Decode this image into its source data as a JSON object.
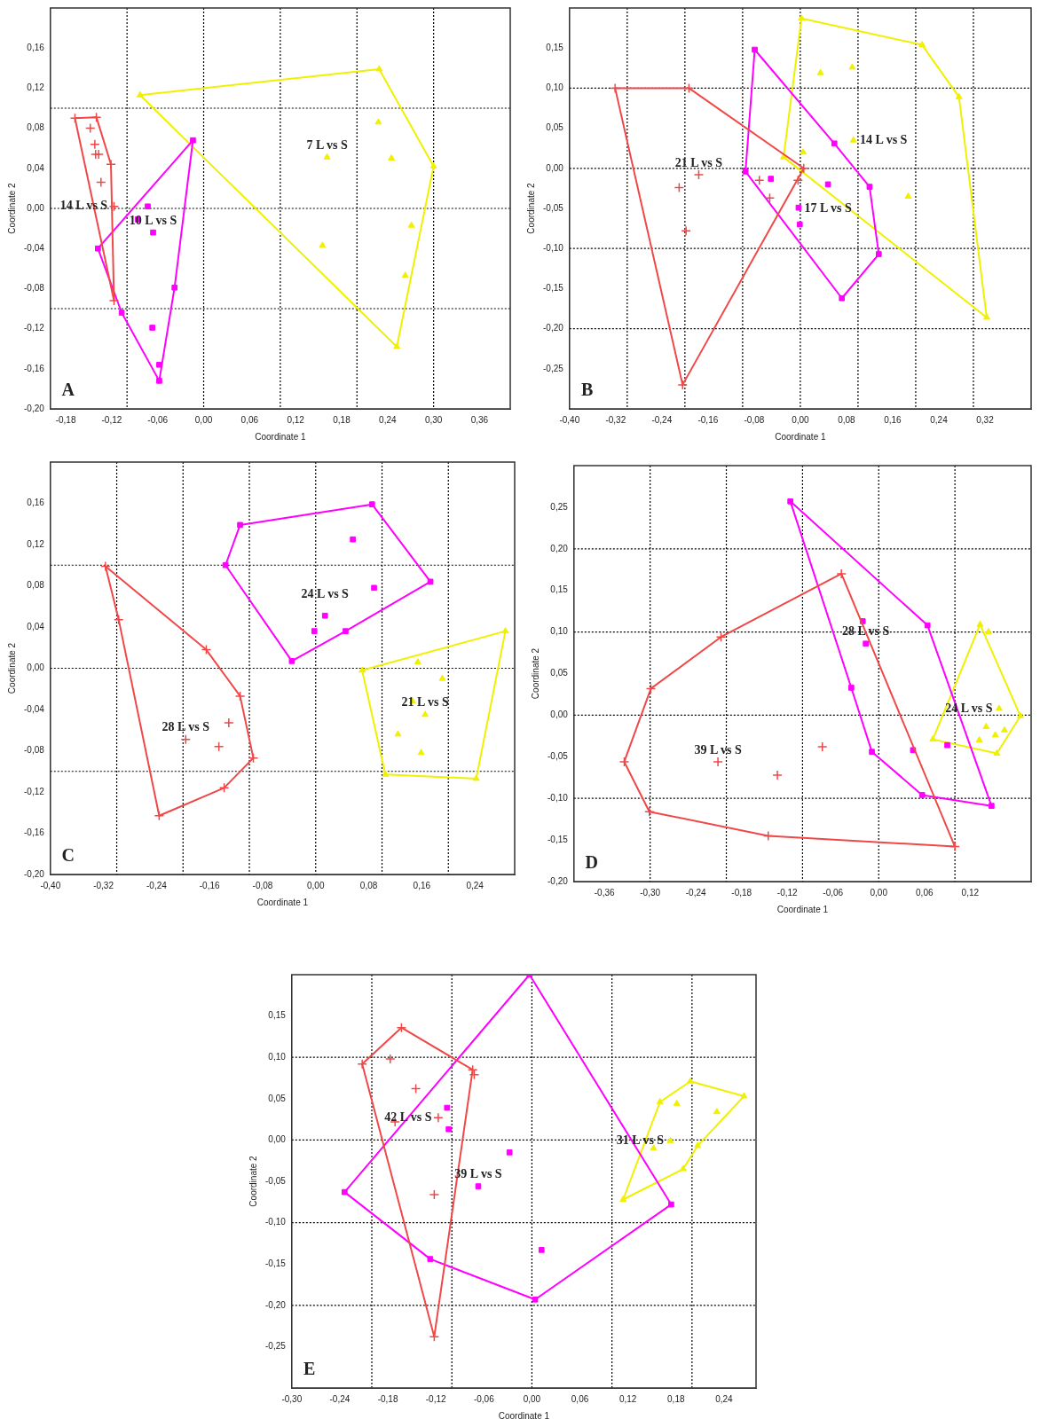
{
  "chart_data": [
    {
      "type": "scatter",
      "xlabel": "Coordinate 1",
      "ylabel": "Coordinate 2",
      "xlim": [
        -0.2,
        0.4
      ],
      "ylim": [
        -0.2,
        0.2
      ],
      "xticks": [
        {
          "value": -0.18,
          "label": "-0,18"
        },
        {
          "value": -0.12,
          "label": "-0,12"
        },
        {
          "value": -0.06,
          "label": "-0,06"
        },
        {
          "value": 0,
          "label": "0,00"
        },
        {
          "value": 0.06,
          "label": "0,06"
        },
        {
          "value": 0.12,
          "label": "0,12"
        },
        {
          "value": 0.18,
          "label": "0,18"
        },
        {
          "value": 0.24,
          "label": "0,24"
        },
        {
          "value": 0.3,
          "label": "0,30"
        },
        {
          "value": 0.36,
          "label": "0,36"
        }
      ],
      "yticks": [
        {
          "value": -0.2,
          "label": "-0,20"
        },
        {
          "value": -0.16,
          "label": "-0,16"
        },
        {
          "value": -0.12,
          "label": "-0,12"
        },
        {
          "value": -0.08,
          "label": "-0,08"
        },
        {
          "value": -0.04,
          "label": "-0,04"
        },
        {
          "value": 0,
          "label": "0,00"
        },
        {
          "value": 0.04,
          "label": "0,04"
        },
        {
          "value": 0.08,
          "label": "0,08"
        },
        {
          "value": 0.12,
          "label": "0,12"
        },
        {
          "value": 0.16,
          "label": "0,16"
        }
      ],
      "series": [
        {
          "type": "line",
          "marker": "none",
          "color": "#f04848",
          "x": [
            -0.168,
            -0.14,
            -0.121,
            -0.117
          ],
          "values": [
            0.09,
            0.091,
            0.044,
            -0.092
          ]
        },
        {
          "type": "line",
          "marker": "none",
          "color": "#f04848",
          "x": [
            -0.168,
            -0.117
          ],
          "values": [
            0.09,
            -0.092
          ]
        },
        {
          "type": "scatter",
          "name": "14 L vs S",
          "marker": "cross",
          "color": "#f04848",
          "x": [
            -0.168,
            -0.14,
            -0.121,
            -0.117,
            -0.148,
            -0.142,
            -0.141,
            -0.137,
            -0.134,
            -0.117
          ],
          "values": [
            0.09,
            0.091,
            0.044,
            -0.092,
            0.08,
            0.064,
            0.054,
            0.054,
            0.026,
            0.002
          ]
        },
        {
          "type": "line",
          "marker": "none",
          "color": "#ff00ff",
          "x": [
            -0.138,
            -0.014
          ],
          "values": [
            -0.04,
            0.068
          ]
        },
        {
          "type": "line",
          "marker": "none",
          "color": "#ff00ff",
          "x": [
            -0.138,
            -0.107,
            -0.058,
            -0.038,
            -0.014
          ],
          "values": [
            -0.04,
            -0.104,
            -0.172,
            -0.079,
            0.068
          ]
        },
        {
          "type": "scatter",
          "name": "10 L vs S",
          "marker": "square",
          "color": "#ff00ff",
          "x": [
            -0.014,
            -0.138,
            -0.107,
            -0.058,
            -0.058,
            -0.038,
            -0.073,
            -0.086,
            -0.066,
            -0.067
          ],
          "values": [
            0.068,
            -0.04,
            -0.104,
            -0.172,
            -0.156,
            -0.079,
            0.002,
            -0.011,
            -0.024,
            -0.119
          ]
        },
        {
          "type": "line",
          "marker": "none",
          "color": "#f0f000",
          "x": [
            -0.083,
            0.229,
            0.3
          ],
          "values": [
            0.113,
            0.139,
            0.042
          ]
        },
        {
          "type": "line",
          "marker": "none",
          "color": "#f0f000",
          "x": [
            -0.083,
            0.252,
            0.3
          ],
          "values": [
            0.113,
            -0.138,
            0.042
          ]
        },
        {
          "type": "scatter",
          "name": "7 L vs S",
          "marker": "triangle",
          "color": "#f0f000",
          "x": [
            -0.083,
            0.229,
            0.3,
            0.252,
            0.228,
            0.161,
            0.245,
            0.155,
            0.271,
            0.263
          ],
          "values": [
            0.113,
            0.139,
            0.042,
            -0.138,
            0.086,
            0.051,
            0.05,
            -0.037,
            -0.017,
            -0.067
          ]
        }
      ],
      "ref_lines": [
        {
          "axis": "x",
          "value": -0.1,
          "line_style": "dotted",
          "color": "#000000"
        },
        {
          "axis": "x",
          "value": 0,
          "line_style": "dotted",
          "color": "#000000"
        },
        {
          "axis": "x",
          "value": 0.1,
          "line_style": "dotted",
          "color": "#000000"
        },
        {
          "axis": "x",
          "value": 0.2,
          "line_style": "dotted",
          "color": "#000000"
        },
        {
          "axis": "x",
          "value": 0.3,
          "line_style": "dotted",
          "color": "#000000"
        },
        {
          "axis": "y",
          "value": 0.1,
          "line_style": "dotted",
          "color": "#000000"
        },
        {
          "axis": "y",
          "value": 0,
          "line_style": "dotted",
          "color": "#000000"
        },
        {
          "axis": "y",
          "value": -0.1,
          "line_style": "dotted",
          "color": "#000000"
        }
      ],
      "annotations": [
        "A"
      ]
    },
    {
      "type": "scatter",
      "xlabel": "Coordinate 1",
      "ylabel": "Coordinate 2",
      "xlim": [
        -0.4,
        0.4
      ],
      "ylim": [
        -0.3,
        0.2
      ],
      "xticks": [
        {
          "value": -0.4,
          "label": "-0,40"
        },
        {
          "value": -0.32,
          "label": "-0,32"
        },
        {
          "value": -0.24,
          "label": "-0,24"
        },
        {
          "value": -0.16,
          "label": "-0,16"
        },
        {
          "value": -0.08,
          "label": "-0,08"
        },
        {
          "value": 0,
          "label": "0,00"
        },
        {
          "value": 0.08,
          "label": "0,08"
        },
        {
          "value": 0.16,
          "label": "0,16"
        },
        {
          "value": 0.24,
          "label": "0,24"
        },
        {
          "value": 0.32,
          "label": "0,32"
        }
      ],
      "yticks": [
        {
          "value": -0.25,
          "label": "-0,25"
        },
        {
          "value": -0.2,
          "label": "-0,20"
        },
        {
          "value": -0.15,
          "label": "-0,15"
        },
        {
          "value": -0.1,
          "label": "-0,10"
        },
        {
          "value": -0.05,
          "label": "-0,05"
        },
        {
          "value": 0,
          "label": "0,00"
        },
        {
          "value": 0.05,
          "label": "0,05"
        },
        {
          "value": 0.1,
          "label": "0,10"
        },
        {
          "value": 0.15,
          "label": "0,15"
        }
      ],
      "series": [
        {
          "type": "line",
          "marker": "none",
          "color": "#f04848",
          "x": [
            -0.321,
            -0.193,
            0.006
          ],
          "values": [
            0.1,
            0.1,
            0
          ]
        },
        {
          "type": "line",
          "marker": "none",
          "color": "#f04848",
          "x": [
            -0.321,
            -0.204,
            0.006
          ],
          "values": [
            0.1,
            -0.27,
            0
          ]
        },
        {
          "type": "scatter",
          "name": "21 L vs S",
          "marker": "cross",
          "color": "#f04848",
          "x": [
            -0.321,
            -0.193,
            0.006,
            -0.204,
            -0.176,
            -0.21,
            -0.198,
            -0.071,
            -0.053,
            -0.004
          ],
          "values": [
            0.1,
            0.1,
            0,
            -0.27,
            -0.008,
            -0.024,
            -0.078,
            -0.015,
            -0.037,
            -0.015
          ]
        },
        {
          "type": "line",
          "marker": "none",
          "color": "#ff00ff",
          "x": [
            -0.095,
            -0.079,
            0.059,
            0.12,
            0.136
          ],
          "values": [
            -0.004,
            0.148,
            0.031,
            -0.023,
            -0.107
          ]
        },
        {
          "type": "line",
          "marker": "none",
          "color": "#ff00ff",
          "x": [
            -0.095,
            0.072,
            0.136
          ],
          "values": [
            -0.004,
            -0.162,
            -0.107
          ]
        },
        {
          "type": "scatter",
          "name": "17 L vs S",
          "marker": "square",
          "color": "#ff00ff",
          "x": [
            -0.079,
            0.059,
            0.12,
            0.136,
            0.072,
            -0.095,
            -0.051,
            0.048,
            -0.003,
            -0.001
          ],
          "values": [
            0.148,
            0.031,
            -0.023,
            -0.107,
            -0.162,
            -0.004,
            -0.013,
            -0.02,
            -0.049,
            -0.07
          ]
        },
        {
          "type": "line",
          "marker": "none",
          "color": "#f0f000",
          "x": [
            -0.029,
            0.002,
            0.211,
            0.275,
            0.323
          ],
          "values": [
            0.014,
            0.187,
            0.154,
            0.089,
            -0.186
          ]
        },
        {
          "type": "line",
          "marker": "none",
          "color": "#f0f000",
          "x": [
            -0.029,
            0.323
          ],
          "values": [
            0.014,
            -0.186
          ]
        },
        {
          "type": "scatter",
          "name": "14 L vs S",
          "marker": "triangle",
          "color": "#f0f000",
          "x": [
            0.002,
            0.211,
            0.275,
            0.323,
            -0.029,
            0.035,
            0.09,
            0.092,
            0.005,
            0.187
          ],
          "values": [
            0.187,
            0.154,
            0.089,
            -0.186,
            0.014,
            0.119,
            0.126,
            0.035,
            0.02,
            -0.035
          ]
        }
      ],
      "ref_lines": [
        {
          "axis": "x",
          "value": -0.3,
          "line_style": "dotted",
          "color": "#000000"
        },
        {
          "axis": "x",
          "value": -0.2,
          "line_style": "dotted",
          "color": "#000000"
        },
        {
          "axis": "x",
          "value": -0.1,
          "line_style": "dotted",
          "color": "#000000"
        },
        {
          "axis": "x",
          "value": 0,
          "line_style": "dotted",
          "color": "#000000"
        },
        {
          "axis": "x",
          "value": 0.1,
          "line_style": "dotted",
          "color": "#000000"
        },
        {
          "axis": "x",
          "value": 0.2,
          "line_style": "dotted",
          "color": "#000000"
        },
        {
          "axis": "x",
          "value": 0.3,
          "line_style": "dotted",
          "color": "#000000"
        },
        {
          "axis": "y",
          "value": 0.1,
          "line_style": "dotted",
          "color": "#000000"
        },
        {
          "axis": "y",
          "value": 0,
          "line_style": "dotted",
          "color": "#000000"
        },
        {
          "axis": "y",
          "value": -0.1,
          "line_style": "dotted",
          "color": "#000000"
        },
        {
          "axis": "y",
          "value": -0.2,
          "line_style": "dotted",
          "color": "#000000"
        }
      ],
      "annotations": [
        "B"
      ]
    },
    {
      "type": "scatter",
      "xlabel": "Coordinate 1",
      "ylabel": "Coordinate 2",
      "xlim": [
        -0.4,
        0.3
      ],
      "ylim": [
        -0.2,
        0.2
      ],
      "xticks": [
        {
          "value": -0.4,
          "label": "-0,40"
        },
        {
          "value": -0.32,
          "label": "-0,32"
        },
        {
          "value": -0.24,
          "label": "-0,24"
        },
        {
          "value": -0.16,
          "label": "-0,16"
        },
        {
          "value": -0.08,
          "label": "-0,08"
        },
        {
          "value": 0,
          "label": "0,00"
        },
        {
          "value": 0.08,
          "label": "0,08"
        },
        {
          "value": 0.16,
          "label": "0,16"
        },
        {
          "value": 0.24,
          "label": "0,24"
        }
      ],
      "yticks": [
        {
          "value": -0.2,
          "label": "-0,20"
        },
        {
          "value": -0.16,
          "label": "-0,16"
        },
        {
          "value": -0.12,
          "label": "-0,12"
        },
        {
          "value": -0.08,
          "label": "-0,08"
        },
        {
          "value": -0.04,
          "label": "-0,04"
        },
        {
          "value": 0,
          "label": "0,00"
        },
        {
          "value": 0.04,
          "label": "0,04"
        },
        {
          "value": 0.08,
          "label": "0,08"
        },
        {
          "value": 0.12,
          "label": "0,12"
        },
        {
          "value": 0.16,
          "label": "0,16"
        }
      ],
      "series": [
        {
          "type": "line",
          "marker": "none",
          "color": "#f04848",
          "x": [
            -0.317,
            -0.165,
            -0.114,
            -0.094
          ],
          "values": [
            0.099,
            0.018,
            -0.027,
            -0.087
          ]
        },
        {
          "type": "line",
          "marker": "none",
          "color": "#f04848",
          "x": [
            -0.317,
            -0.297,
            -0.236,
            -0.138,
            -0.094
          ],
          "values": [
            0.099,
            0.047,
            -0.143,
            -0.116,
            -0.087
          ]
        },
        {
          "type": "scatter",
          "name": "28 L vs S",
          "marker": "cross",
          "color": "#f04848",
          "x": [
            -0.317,
            -0.165,
            -0.114,
            -0.094,
            -0.138,
            -0.236,
            -0.297,
            -0.196,
            -0.146,
            -0.131
          ],
          "values": [
            0.099,
            0.018,
            -0.027,
            -0.087,
            -0.116,
            -0.143,
            0.047,
            -0.069,
            -0.076,
            -0.053
          ]
        },
        {
          "type": "line",
          "marker": "none",
          "color": "#ff00ff",
          "x": [
            -0.136,
            -0.114,
            0.085,
            0.173
          ],
          "values": [
            0.1,
            0.139,
            0.159,
            0.084
          ]
        },
        {
          "type": "line",
          "marker": "none",
          "color": "#ff00ff",
          "x": [
            -0.136,
            -0.036,
            0.045,
            0.173
          ],
          "values": [
            0.1,
            0.007,
            0.036,
            0.084
          ]
        },
        {
          "type": "scatter",
          "name": "24 L vs S",
          "marker": "square",
          "color": "#ff00ff",
          "x": [
            -0.114,
            0.085,
            0.173,
            0.045,
            -0.036,
            -0.136,
            0.056,
            0.088,
            0.014,
            -0.002
          ],
          "values": [
            0.139,
            0.159,
            0.084,
            0.036,
            0.007,
            0.1,
            0.125,
            0.078,
            0.051,
            0.036
          ]
        },
        {
          "type": "line",
          "marker": "none",
          "color": "#f0f000",
          "x": [
            0.07,
            0.286
          ],
          "values": [
            -0.002,
            0.036
          ]
        },
        {
          "type": "line",
          "marker": "none",
          "color": "#f0f000",
          "x": [
            0.07,
            0.105,
            0.242,
            0.286
          ],
          "values": [
            -0.002,
            -0.103,
            -0.107,
            0.036
          ]
        },
        {
          "type": "scatter",
          "name": "21 L vs S",
          "marker": "triangle",
          "color": "#f0f000",
          "x": [
            0.07,
            0.286,
            0.242,
            0.105,
            0.154,
            0.191,
            0.146,
            0.165,
            0.124,
            0.159
          ],
          "values": [
            -0.002,
            0.036,
            -0.107,
            -0.103,
            0.006,
            -0.01,
            -0.032,
            -0.045,
            -0.064,
            -0.082
          ]
        }
      ],
      "ref_lines": [
        {
          "axis": "x",
          "value": -0.3,
          "line_style": "dotted",
          "color": "#000000"
        },
        {
          "axis": "x",
          "value": -0.2,
          "line_style": "dotted",
          "color": "#000000"
        },
        {
          "axis": "x",
          "value": -0.1,
          "line_style": "dotted",
          "color": "#000000"
        },
        {
          "axis": "x",
          "value": 0,
          "line_style": "dotted",
          "color": "#000000"
        },
        {
          "axis": "x",
          "value": 0.1,
          "line_style": "dotted",
          "color": "#000000"
        },
        {
          "axis": "x",
          "value": 0.2,
          "line_style": "dotted",
          "color": "#000000"
        },
        {
          "axis": "y",
          "value": 0.1,
          "line_style": "dotted",
          "color": "#000000"
        },
        {
          "axis": "y",
          "value": 0,
          "line_style": "dotted",
          "color": "#000000"
        },
        {
          "axis": "y",
          "value": -0.1,
          "line_style": "dotted",
          "color": "#000000"
        }
      ],
      "annotations": [
        "C"
      ]
    },
    {
      "type": "scatter",
      "xlabel": "Coordinate 1",
      "ylabel": "Coordinate 2",
      "xlim": [
        -0.4,
        0.2
      ],
      "ylim": [
        -0.2,
        0.3
      ],
      "xticks": [
        {
          "value": -0.36,
          "label": "-0,36"
        },
        {
          "value": -0.3,
          "label": "-0,30"
        },
        {
          "value": -0.24,
          "label": "-0,24"
        },
        {
          "value": -0.18,
          "label": "-0,18"
        },
        {
          "value": -0.12,
          "label": "-0,12"
        },
        {
          "value": -0.06,
          "label": "-0,06"
        },
        {
          "value": 0,
          "label": "0,00"
        },
        {
          "value": 0.06,
          "label": "0,06"
        },
        {
          "value": 0.12,
          "label": "0,12"
        }
      ],
      "yticks": [
        {
          "value": -0.2,
          "label": "-0,20"
        },
        {
          "value": -0.15,
          "label": "-0,15"
        },
        {
          "value": -0.1,
          "label": "-0,10"
        },
        {
          "value": -0.05,
          "label": "-0,05"
        },
        {
          "value": 0,
          "label": "0,00"
        },
        {
          "value": 0.05,
          "label": "0,05"
        },
        {
          "value": 0.1,
          "label": "0,10"
        },
        {
          "value": 0.15,
          "label": "0,15"
        },
        {
          "value": 0.2,
          "label": "0,20"
        },
        {
          "value": 0.25,
          "label": "0,25"
        }
      ],
      "series": [
        {
          "type": "line",
          "marker": "none",
          "color": "#f04848",
          "x": [
            -0.334,
            -0.299,
            -0.207,
            -0.049,
            0.1
          ],
          "values": [
            -0.056,
            0.032,
            0.094,
            0.17,
            -0.158
          ]
        },
        {
          "type": "line",
          "marker": "none",
          "color": "#f04848",
          "x": [
            -0.334,
            -0.301,
            -0.145,
            0.1
          ],
          "values": [
            -0.056,
            -0.116,
            -0.145,
            -0.158
          ]
        },
        {
          "type": "scatter",
          "name": "39 L vs S",
          "marker": "cross",
          "color": "#f04848",
          "x": [
            -0.049,
            -0.207,
            -0.299,
            -0.334,
            -0.301,
            -0.145,
            0.1,
            -0.211,
            -0.133,
            -0.074
          ],
          "values": [
            0.17,
            0.094,
            0.032,
            -0.056,
            -0.116,
            -0.145,
            -0.158,
            -0.056,
            -0.072,
            -0.038
          ]
        },
        {
          "type": "line",
          "marker": "none",
          "color": "#ff00ff",
          "x": [
            -0.116,
            0.064,
            0.148
          ],
          "values": [
            0.257,
            0.108,
            -0.109
          ]
        },
        {
          "type": "line",
          "marker": "none",
          "color": "#ff00ff",
          "x": [
            -0.116,
            -0.036,
            -0.009,
            0.057,
            0.148
          ],
          "values": [
            0.257,
            0.033,
            -0.044,
            -0.096,
            -0.109
          ]
        },
        {
          "type": "scatter",
          "name": "28 L vs S",
          "marker": "square",
          "color": "#ff00ff",
          "x": [
            -0.116,
            0.064,
            0.148,
            0.057,
            -0.009,
            -0.036,
            -0.021,
            -0.017,
            0.045,
            0.09
          ],
          "values": [
            0.257,
            0.108,
            -0.109,
            -0.096,
            -0.044,
            0.033,
            0.113,
            0.086,
            -0.042,
            -0.036
          ]
        },
        {
          "type": "line",
          "marker": "none",
          "color": "#f0f000",
          "x": [
            0.071,
            0.133,
            0.186
          ],
          "values": [
            -0.029,
            0.109,
            -0.001
          ]
        },
        {
          "type": "line",
          "marker": "none",
          "color": "#f0f000",
          "x": [
            0.071,
            0.155,
            0.186
          ],
          "values": [
            -0.029,
            -0.046,
            -0.001
          ]
        },
        {
          "type": "scatter",
          "name": "24 L vs S",
          "marker": "triangle",
          "color": "#f0f000",
          "x": [
            0.133,
            0.186,
            0.155,
            0.071,
            0.144,
            0.158,
            0.141,
            0.165,
            0.153,
            0.132
          ],
          "values": [
            0.109,
            -0.001,
            -0.046,
            -0.029,
            0.1,
            0.008,
            -0.014,
            -0.018,
            -0.024,
            -0.03
          ]
        }
      ],
      "ref_lines": [
        {
          "axis": "x",
          "value": -0.3,
          "line_style": "dotted",
          "color": "#000000"
        },
        {
          "axis": "x",
          "value": -0.2,
          "line_style": "dotted",
          "color": "#000000"
        },
        {
          "axis": "x",
          "value": -0.1,
          "line_style": "dotted",
          "color": "#000000"
        },
        {
          "axis": "x",
          "value": 0,
          "line_style": "dotted",
          "color": "#000000"
        },
        {
          "axis": "x",
          "value": 0.1,
          "line_style": "dotted",
          "color": "#000000"
        },
        {
          "axis": "y",
          "value": 0.2,
          "line_style": "dotted",
          "color": "#000000"
        },
        {
          "axis": "y",
          "value": 0.1,
          "line_style": "dotted",
          "color": "#000000"
        },
        {
          "axis": "y",
          "value": 0,
          "line_style": "dotted",
          "color": "#000000"
        },
        {
          "axis": "y",
          "value": -0.1,
          "line_style": "dotted",
          "color": "#000000"
        }
      ],
      "annotations": [
        "D"
      ]
    },
    {
      "type": "scatter",
      "xlabel": "Coordinate 1",
      "ylabel": "Coordinate 2",
      "xlim": [
        -0.3,
        0.28
      ],
      "ylim": [
        -0.3,
        0.2
      ],
      "xticks": [
        {
          "value": -0.3,
          "label": "-0,30"
        },
        {
          "value": -0.24,
          "label": "-0,24"
        },
        {
          "value": -0.18,
          "label": "-0,18"
        },
        {
          "value": -0.12,
          "label": "-0,12"
        },
        {
          "value": -0.06,
          "label": "-0,06"
        },
        {
          "value": 0,
          "label": "0,00"
        },
        {
          "value": 0.06,
          "label": "0,06"
        },
        {
          "value": 0.12,
          "label": "0,12"
        },
        {
          "value": 0.18,
          "label": "0,18"
        },
        {
          "value": 0.24,
          "label": "0,24"
        }
      ],
      "yticks": [
        {
          "value": -0.25,
          "label": "-0,25"
        },
        {
          "value": -0.2,
          "label": "-0,20"
        },
        {
          "value": -0.15,
          "label": "-0,15"
        },
        {
          "value": -0.1,
          "label": "-0,10"
        },
        {
          "value": -0.05,
          "label": "-0,05"
        },
        {
          "value": 0,
          "label": "0,00"
        },
        {
          "value": 0.05,
          "label": "0,05"
        },
        {
          "value": 0.1,
          "label": "0,10"
        },
        {
          "value": 0.15,
          "label": "0,15"
        }
      ],
      "series": [
        {
          "type": "line",
          "marker": "none",
          "color": "#f04848",
          "x": [
            -0.212,
            -0.163,
            -0.074
          ],
          "values": [
            0.092,
            0.136,
            0.085
          ]
        },
        {
          "type": "line",
          "marker": "none",
          "color": "#f04848",
          "x": [
            -0.212,
            -0.122,
            -0.074
          ],
          "values": [
            0.092,
            -0.238,
            0.085
          ]
        },
        {
          "type": "scatter",
          "name": "42 L vs S",
          "marker": "cross",
          "color": "#f04848",
          "x": [
            -0.163,
            -0.074,
            -0.122,
            -0.212,
            -0.177,
            -0.145,
            -0.171,
            -0.117,
            -0.122,
            -0.072
          ],
          "values": [
            0.136,
            0.085,
            -0.238,
            0.092,
            0.098,
            0.062,
            0.022,
            0.027,
            -0.066,
            0.079
          ]
        },
        {
          "type": "line",
          "marker": "none",
          "color": "#ff00ff",
          "x": [
            -0.234,
            -0.003,
            0.174
          ],
          "values": [
            -0.063,
            0.2,
            -0.078
          ]
        },
        {
          "type": "line",
          "marker": "none",
          "color": "#ff00ff",
          "x": [
            -0.234,
            -0.127,
            0.004,
            0.174
          ],
          "values": [
            -0.063,
            -0.144,
            -0.193,
            -0.078
          ]
        },
        {
          "type": "scatter",
          "name": "39 L vs S",
          "marker": "square",
          "color": "#ff00ff",
          "x": [
            -0.003,
            0.174,
            0.004,
            -0.127,
            -0.234,
            -0.106,
            -0.104,
            -0.028,
            -0.067,
            0.012
          ],
          "values": [
            0.2,
            -0.078,
            -0.193,
            -0.144,
            -0.063,
            0.039,
            0.013,
            -0.015,
            -0.056,
            -0.133
          ]
        },
        {
          "type": "line",
          "marker": "none",
          "color": "#f0f000",
          "x": [
            0.114,
            0.16,
            0.198,
            0.265
          ],
          "values": [
            -0.072,
            0.046,
            0.071,
            0.053
          ]
        },
        {
          "type": "line",
          "marker": "none",
          "color": "#f0f000",
          "x": [
            0.114,
            0.189,
            0.207,
            0.265
          ],
          "values": [
            -0.072,
            -0.035,
            -0.007,
            0.053
          ]
        },
        {
          "type": "scatter",
          "name": "31 L vs S",
          "marker": "triangle",
          "color": "#f0f000",
          "x": [
            0.198,
            0.265,
            0.207,
            0.189,
            0.114,
            0.16,
            0.181,
            0.231,
            0.173,
            0.152
          ],
          "values": [
            0.071,
            0.053,
            -0.007,
            -0.035,
            -0.072,
            0.046,
            0.044,
            0.034,
            -0.001,
            -0.01
          ]
        }
      ],
      "ref_lines": [
        {
          "axis": "x",
          "value": -0.2,
          "line_style": "dotted",
          "color": "#000000"
        },
        {
          "axis": "x",
          "value": -0.1,
          "line_style": "dotted",
          "color": "#000000"
        },
        {
          "axis": "x",
          "value": 0,
          "line_style": "dotted",
          "color": "#000000"
        },
        {
          "axis": "x",
          "value": 0.1,
          "line_style": "dotted",
          "color": "#000000"
        },
        {
          "axis": "x",
          "value": 0.2,
          "line_style": "dotted",
          "color": "#000000"
        },
        {
          "axis": "y",
          "value": 0.1,
          "line_style": "dotted",
          "color": "#000000"
        },
        {
          "axis": "y",
          "value": 0,
          "line_style": "dotted",
          "color": "#000000"
        },
        {
          "axis": "y",
          "value": -0.1,
          "line_style": "dotted",
          "color": "#000000"
        },
        {
          "axis": "y",
          "value": -0.2,
          "line_style": "dotted",
          "color": "#000000"
        }
      ],
      "annotations": [
        "E"
      ]
    }
  ]
}
